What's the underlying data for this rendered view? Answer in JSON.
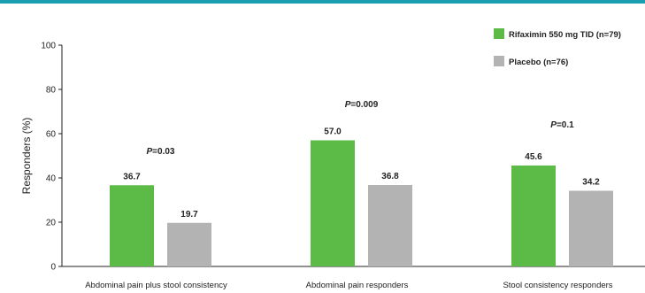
{
  "chart_data": {
    "type": "bar",
    "title": "",
    "xlabel": "",
    "ylabel": "Responders (%)",
    "ylim": [
      0,
      100
    ],
    "yticks": [
      0,
      20,
      40,
      60,
      80,
      100
    ],
    "categories": [
      "Abdominal pain plus stool consistency",
      "Abdominal pain responders",
      "Stool consistency responders"
    ],
    "series": [
      {
        "name": "Rifaximin 550 mg TID (n=79)",
        "color": "#5cbb47",
        "values": [
          36.7,
          57.0,
          45.6
        ],
        "labels": [
          "36.7",
          "57.0",
          "45.6"
        ]
      },
      {
        "name": "Placebo (n=76)",
        "color": "#b3b3b3",
        "values": [
          19.7,
          36.8,
          34.2
        ],
        "labels": [
          "19.7",
          "36.8",
          "34.2"
        ]
      }
    ],
    "p_values": [
      {
        "prefix": "P",
        "text": "=0.03"
      },
      {
        "prefix": "P",
        "text": "=0.009"
      },
      {
        "prefix": "P",
        "text": "=0.1"
      }
    ],
    "legend_position": "top-right",
    "grid": false
  },
  "colors": {
    "axis": "#222222",
    "header_accent": "#1a9fb0"
  }
}
